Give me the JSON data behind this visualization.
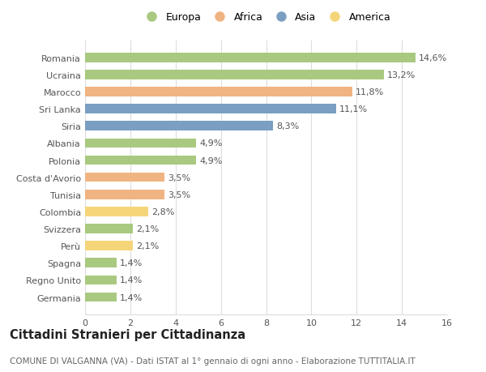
{
  "categories": [
    "Germania",
    "Regno Unito",
    "Spagna",
    "Perù",
    "Svizzera",
    "Colombia",
    "Tunisia",
    "Costa d'Avorio",
    "Polonia",
    "Albania",
    "Siria",
    "Sri Lanka",
    "Marocco",
    "Ucraina",
    "Romania"
  ],
  "values": [
    1.4,
    1.4,
    1.4,
    2.1,
    2.1,
    2.8,
    3.5,
    3.5,
    4.9,
    4.9,
    8.3,
    11.1,
    11.8,
    13.2,
    14.6
  ],
  "labels": [
    "1,4%",
    "1,4%",
    "1,4%",
    "2,1%",
    "2,1%",
    "2,8%",
    "3,5%",
    "3,5%",
    "4,9%",
    "4,9%",
    "8,3%",
    "11,1%",
    "11,8%",
    "13,2%",
    "14,6%"
  ],
  "continents": [
    "Europa",
    "Europa",
    "Europa",
    "America",
    "Europa",
    "America",
    "Africa",
    "Africa",
    "Europa",
    "Europa",
    "Asia",
    "Asia",
    "Africa",
    "Europa",
    "Europa"
  ],
  "colors": {
    "Europa": "#a8c97f",
    "Africa": "#f0b482",
    "Asia": "#7a9fc2",
    "America": "#f5d57a"
  },
  "legend_order": [
    "Europa",
    "Africa",
    "Asia",
    "America"
  ],
  "title1": "Cittadini Stranieri per Cittadinanza",
  "title2": "COMUNE DI VALGANNA (VA) - Dati ISTAT al 1° gennaio di ogni anno - Elaborazione TUTTITALIA.IT",
  "xlim": [
    0,
    16
  ],
  "xticks": [
    0,
    2,
    4,
    6,
    8,
    10,
    12,
    14,
    16
  ],
  "background_color": "#ffffff",
  "grid_color": "#dddddd",
  "bar_height": 0.55,
  "label_fontsize": 8.0,
  "tick_fontsize": 8.0,
  "title1_fontsize": 10.5,
  "title2_fontsize": 7.5
}
